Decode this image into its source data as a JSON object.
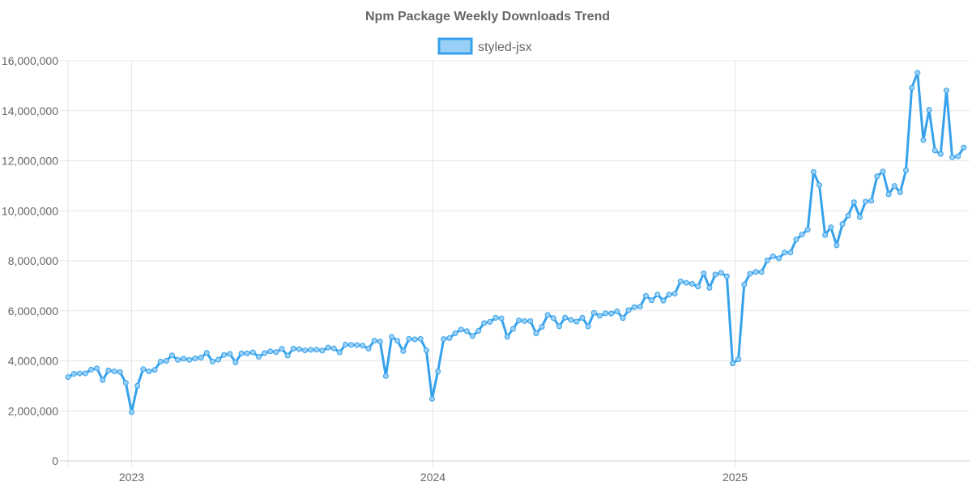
{
  "chart_data": {
    "type": "line",
    "title": "Npm Package Weekly Downloads Trend",
    "xlabel": "",
    "ylabel": "",
    "x_start": "2022-10-16",
    "x_step_days": 7,
    "x_range": [
      "2022-10-16",
      "2025-10-12"
    ],
    "x_tick_labels": [
      {
        "label": "2023",
        "date": "2023-01-01"
      },
      {
        "label": "2024",
        "date": "2024-01-01"
      },
      {
        "label": "2025",
        "date": "2025-01-01"
      }
    ],
    "ylim": [
      0,
      16000000
    ],
    "y_tick_values": [
      0,
      2000000,
      4000000,
      6000000,
      8000000,
      10000000,
      12000000,
      14000000,
      16000000
    ],
    "y_tick_labels": [
      "0",
      "2,000,000",
      "4,000,000",
      "6,000,000",
      "8,000,000",
      "10,000,000",
      "12,000,000",
      "14,000,000",
      "16,000,000"
    ],
    "grid": true,
    "legend_position": "top",
    "series": [
      {
        "name": "styled-jsx",
        "color": "#36a2eb",
        "fill_color": "#9ad0f5",
        "values": [
          3350000,
          3480000,
          3500000,
          3500000,
          3650000,
          3700000,
          3230000,
          3620000,
          3580000,
          3550000,
          3120000,
          1950000,
          3000000,
          3670000,
          3580000,
          3640000,
          3970000,
          4000000,
          4220000,
          4040000,
          4090000,
          4040000,
          4100000,
          4130000,
          4320000,
          3970000,
          4050000,
          4240000,
          4280000,
          3940000,
          4300000,
          4300000,
          4340000,
          4160000,
          4310000,
          4380000,
          4350000,
          4480000,
          4210000,
          4490000,
          4470000,
          4420000,
          4440000,
          4450000,
          4410000,
          4530000,
          4500000,
          4340000,
          4650000,
          4640000,
          4630000,
          4610000,
          4490000,
          4810000,
          4770000,
          3390000,
          4960000,
          4800000,
          4390000,
          4880000,
          4860000,
          4880000,
          4420000,
          2480000,
          3580000,
          4870000,
          4910000,
          5100000,
          5250000,
          5190000,
          4990000,
          5200000,
          5510000,
          5560000,
          5720000,
          5700000,
          4960000,
          5280000,
          5620000,
          5590000,
          5590000,
          5100000,
          5360000,
          5840000,
          5710000,
          5380000,
          5730000,
          5640000,
          5570000,
          5720000,
          5380000,
          5920000,
          5800000,
          5900000,
          5890000,
          5980000,
          5710000,
          6030000,
          6150000,
          6170000,
          6600000,
          6420000,
          6650000,
          6410000,
          6650000,
          6690000,
          7180000,
          7120000,
          7080000,
          6970000,
          7500000,
          6920000,
          7450000,
          7520000,
          7380000,
          3900000,
          4060000,
          7050000,
          7480000,
          7560000,
          7550000,
          8020000,
          8180000,
          8100000,
          8330000,
          8330000,
          8850000,
          9050000,
          9250000,
          11550000,
          11030000,
          9030000,
          9340000,
          8620000,
          9470000,
          9810000,
          10340000,
          9750000,
          10370000,
          10400000,
          11380000,
          11570000,
          10660000,
          10990000,
          10740000,
          11620000,
          14920000,
          15520000,
          12830000,
          14040000,
          12410000,
          12270000,
          14810000,
          12140000,
          12180000,
          12530000
        ]
      }
    ]
  }
}
